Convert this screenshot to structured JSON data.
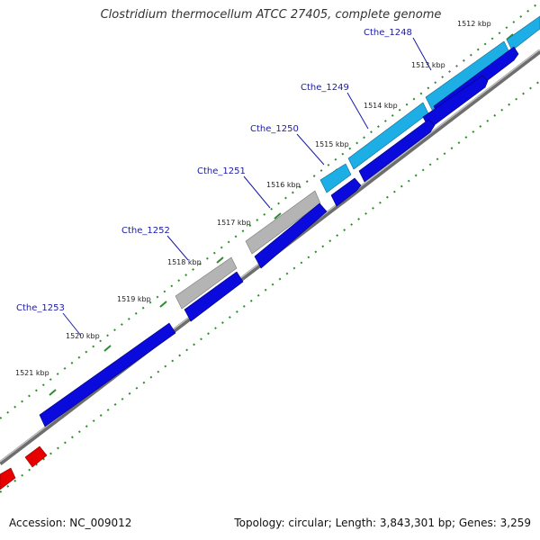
{
  "title": "Clostridium thermocellum ATCC 27405, complete genome",
  "footer": {
    "accession": "Accession: NC_009012",
    "summary": "Topology: circular; Length: 3,843,301 bp; Genes: 3,259"
  },
  "colors": {
    "forward_blue": "#0a0adc",
    "cyan": "#1eaee6",
    "gray": "#b4b4b4",
    "red": "#e60000",
    "backbone": "#808080",
    "tick_green": "#2e8b2e",
    "label_blue": "#1a1aa6"
  },
  "tick_labels": [
    "1512 kbp",
    "1513 kbp",
    "1514 kbp",
    "1515 kbp",
    "1516 kbp",
    "1517 kbp",
    "1518 kbp",
    "1519 kbp",
    "1520 kbp",
    "1521 kbp"
  ],
  "gene_labels": [
    "Cthe_1248",
    "Cthe_1249",
    "Cthe_1250",
    "Cthe_1251",
    "Cthe_1252",
    "Cthe_1253"
  ]
}
